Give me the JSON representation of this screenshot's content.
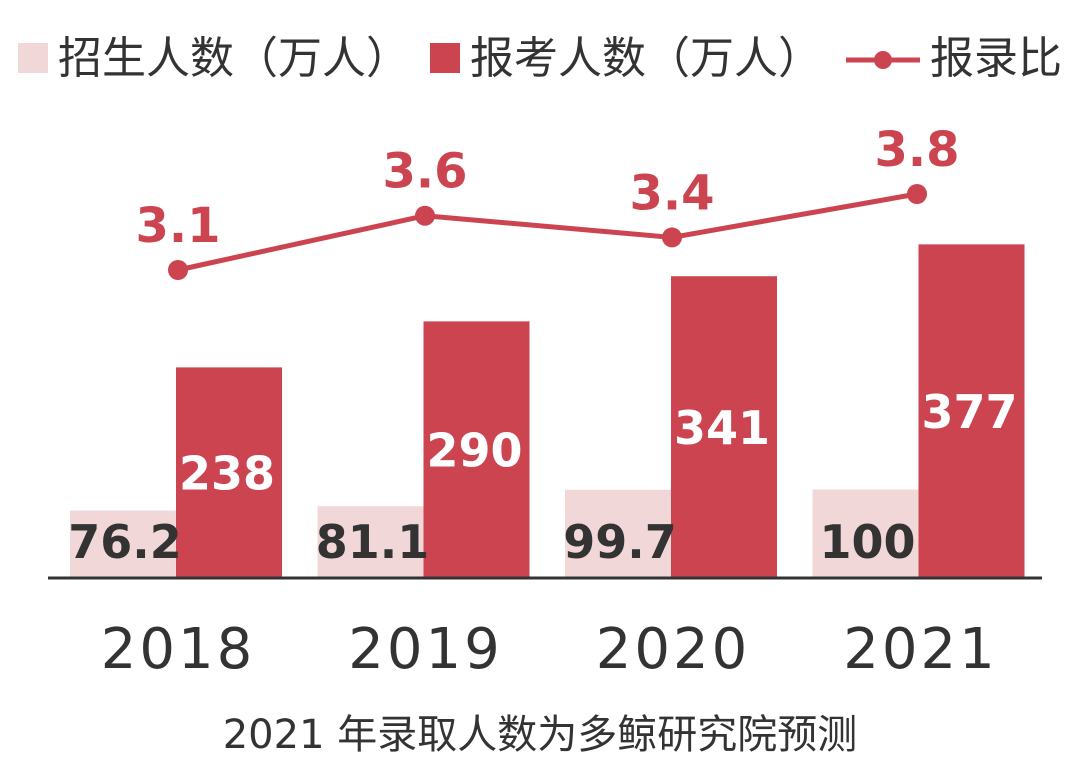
{
  "colors": {
    "enrollment": "#f2d7d9",
    "applicants": "#cc4450",
    "ratio": "#cc4450",
    "axis": "#333333"
  },
  "legend": {
    "enrollment": "招生人数（万人）",
    "applicants": "报考人数（万人）",
    "ratio": "报录比"
  },
  "caption": "2021 年录取人数为多鲸研究院预测",
  "chart_data": {
    "type": "bar",
    "categories": [
      "2018",
      "2019",
      "2020",
      "2021"
    ],
    "series": [
      {
        "name": "招生人数（万人）",
        "type": "bar",
        "values": [
          76.2,
          81.1,
          99.7,
          100
        ],
        "labels": [
          "76.2",
          "81.1",
          "99.7",
          "100"
        ]
      },
      {
        "name": "报考人数（万人）",
        "type": "bar",
        "values": [
          238,
          290,
          341,
          377
        ],
        "labels": [
          "238",
          "290",
          "341",
          "377"
        ]
      },
      {
        "name": "报录比",
        "type": "line",
        "values": [
          3.1,
          3.6,
          3.4,
          3.8
        ],
        "labels": [
          "3.1",
          "3.6",
          "3.4",
          "3.8"
        ]
      }
    ],
    "title": "",
    "xlabel": "",
    "ylabel": "",
    "ylim": [
      0,
      380
    ],
    "grid": false,
    "legend_position": "top"
  }
}
